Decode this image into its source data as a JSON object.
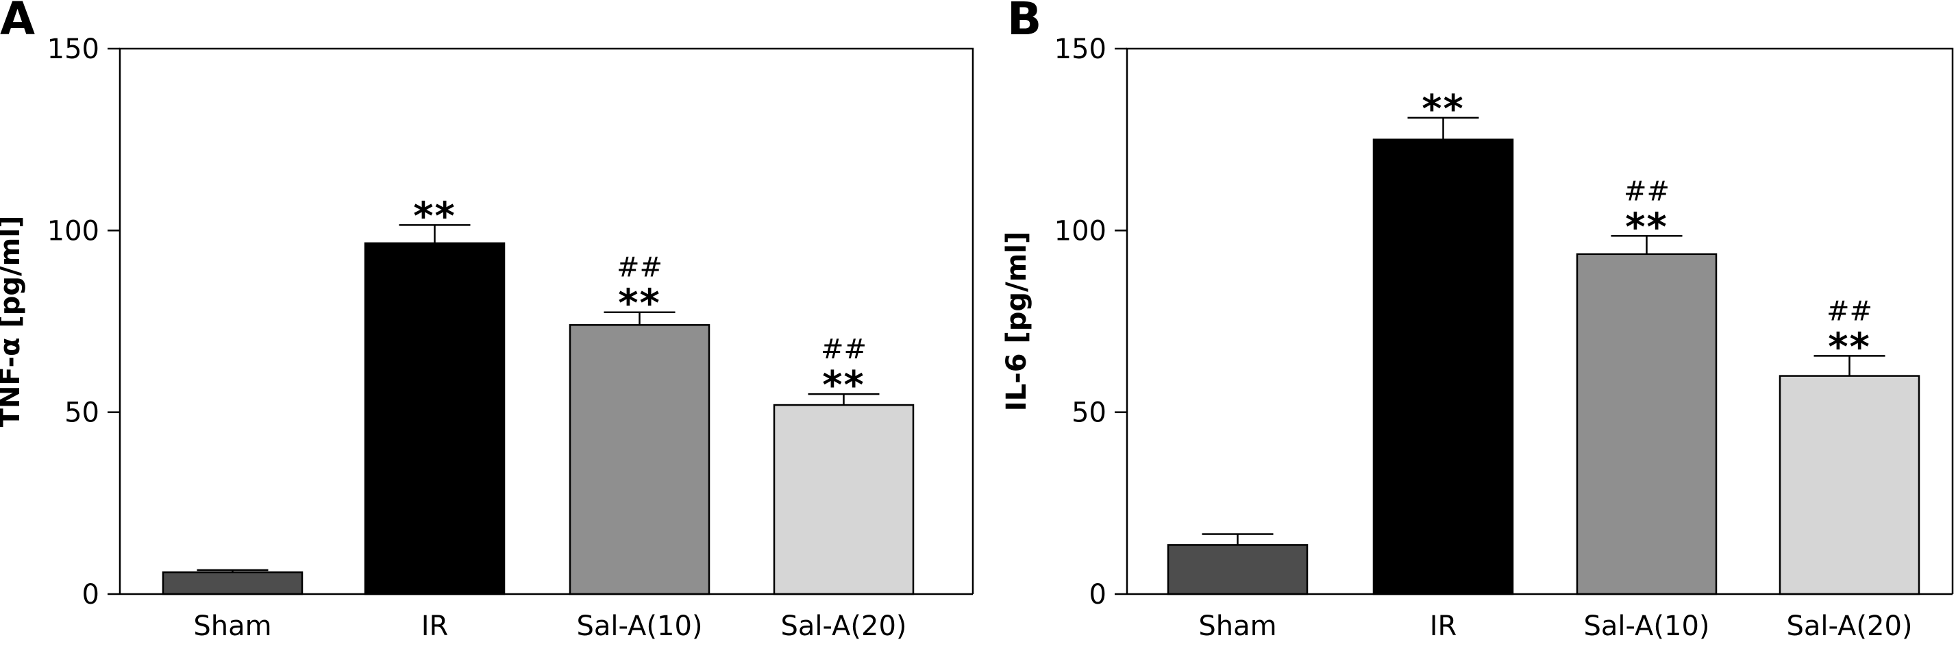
{
  "chart_data": [
    {
      "panel_label": "A",
      "type": "bar",
      "categories": [
        "Sham",
        "IR",
        "Sal-A(10)",
        "Sal-A(20)"
      ],
      "values": [
        6,
        96.5,
        74,
        52
      ],
      "errors": [
        0.6,
        5,
        3.5,
        3
      ],
      "bar_colors": [
        "#4d4d4d",
        "#000000",
        "#8f8f8f",
        "#d6d6d6"
      ],
      "annotations": [
        {
          "category_index": 1,
          "lines": [
            "**"
          ]
        },
        {
          "category_index": 2,
          "lines": [
            "##",
            "**"
          ]
        },
        {
          "category_index": 3,
          "lines": [
            "##",
            "**"
          ]
        }
      ],
      "ylabel": "TNF-α [pg/ml]",
      "ylim": [
        0,
        150
      ],
      "yticks": [
        0,
        50,
        100,
        150
      ],
      "grid": false
    },
    {
      "panel_label": "B",
      "type": "bar",
      "categories": [
        "Sham",
        "IR",
        "Sal-A(10)",
        "Sal-A(20)"
      ],
      "values": [
        13.5,
        125,
        93.5,
        60
      ],
      "errors": [
        3,
        6,
        5,
        5.5
      ],
      "bar_colors": [
        "#4d4d4d",
        "#000000",
        "#8f8f8f",
        "#d6d6d6"
      ],
      "annotations": [
        {
          "category_index": 1,
          "lines": [
            "**"
          ]
        },
        {
          "category_index": 2,
          "lines": [
            "##",
            "**"
          ]
        },
        {
          "category_index": 3,
          "lines": [
            "##",
            "**"
          ]
        }
      ],
      "ylabel": "IL-6 [pg/ml]",
      "ylim": [
        0,
        150
      ],
      "yticks": [
        0,
        50,
        100,
        150
      ],
      "grid": false
    }
  ]
}
